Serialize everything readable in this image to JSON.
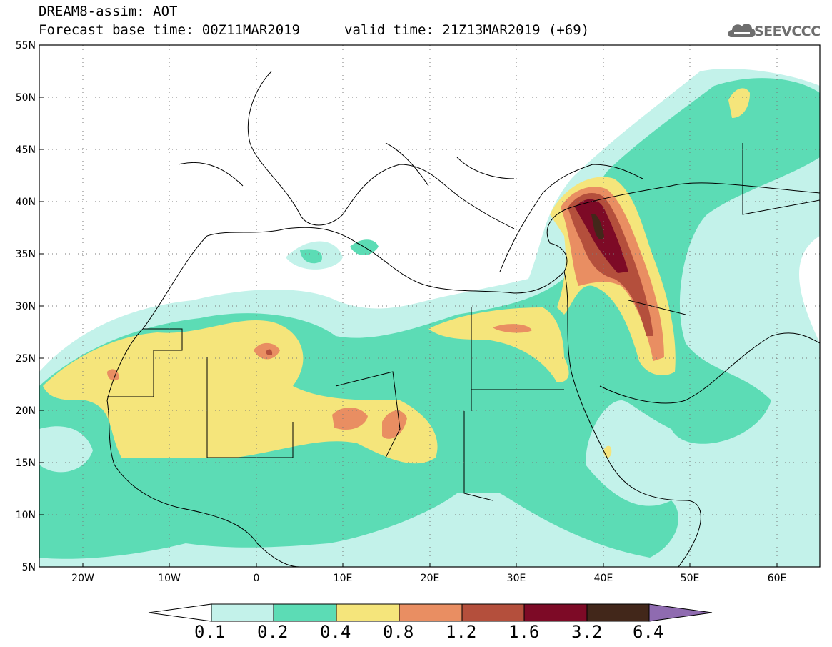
{
  "header": {
    "line1": "DREAM8-assim: AOT",
    "line2": "Forecast base time: 00Z11MAR2019",
    "valid": "valid time: 21Z13MAR2019 (+69)",
    "logo": "SEEVCCC"
  },
  "map": {
    "projection": "lat-lon",
    "lon_range": [
      -25,
      65
    ],
    "lat_range": [
      5,
      55
    ],
    "lat_ticks": [
      "55N",
      "50N",
      "45N",
      "40N",
      "35N",
      "30N",
      "25N",
      "20N",
      "15N",
      "10N",
      "5N"
    ],
    "lon_ticks": [
      "20W",
      "10W",
      "0",
      "10E",
      "20E",
      "30E",
      "40E",
      "50E",
      "60E"
    ],
    "grid": "dotted"
  },
  "colorbar": {
    "levels": [
      "0.1",
      "0.2",
      "0.4",
      "0.8",
      "1.2",
      "1.6",
      "3.2",
      "6.4"
    ],
    "colors": [
      "#c3f2ea",
      "#5cdcb5",
      "#f5e57b",
      "#e98e62",
      "#b44f3c",
      "#7d0a26",
      "#42271a",
      "#8f6bb0"
    ]
  }
}
